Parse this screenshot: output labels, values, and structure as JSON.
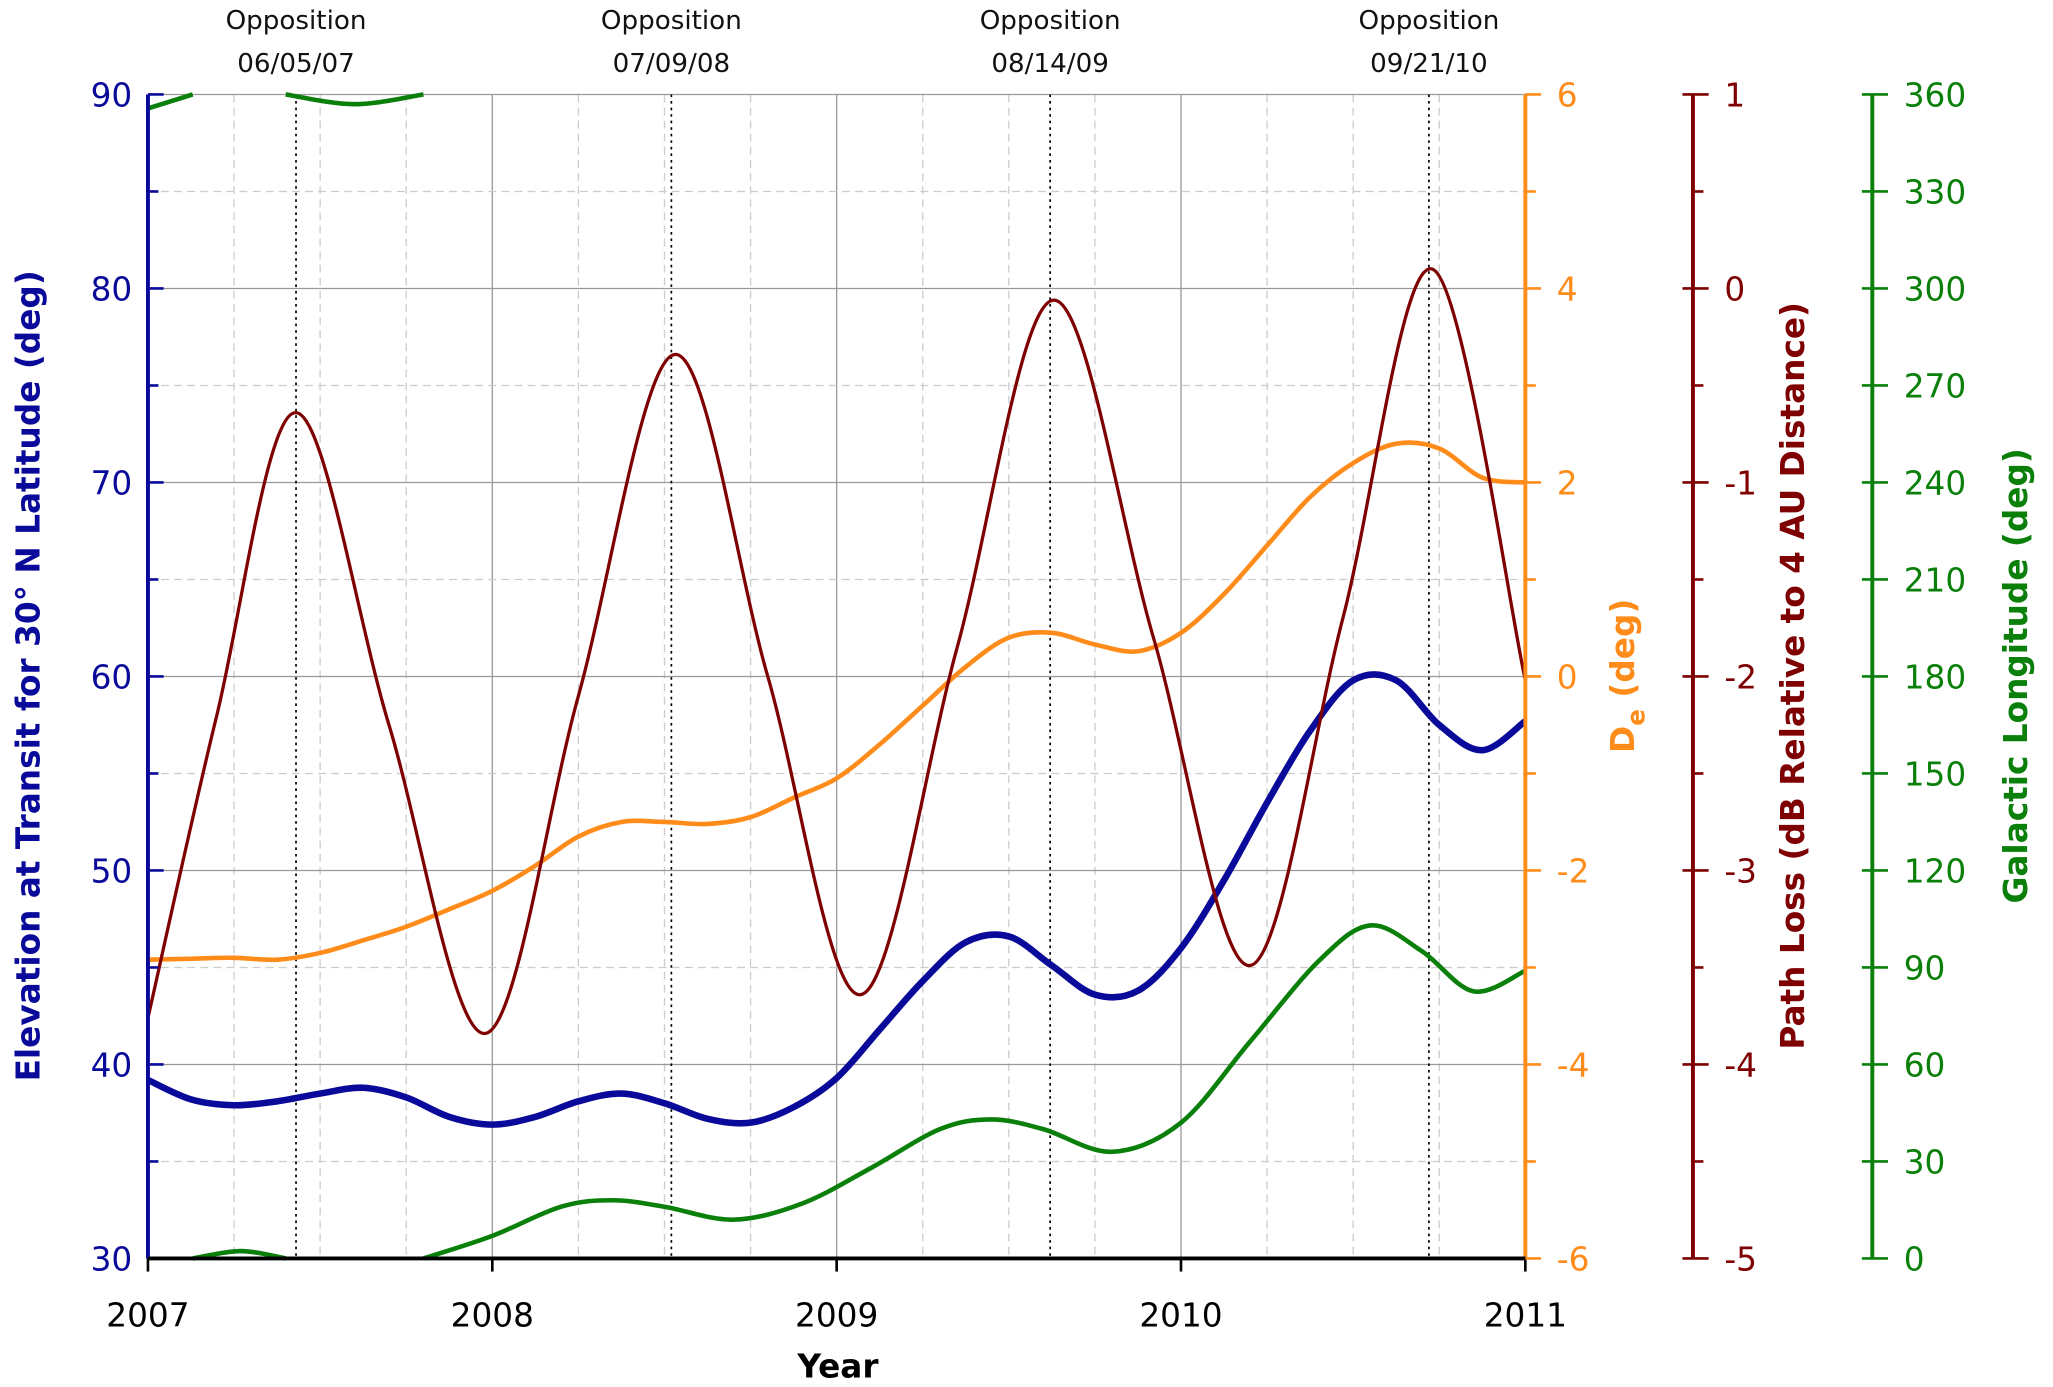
{
  "chart_data": {
    "type": "line",
    "xlabel": "Year",
    "ylabel": "Elevation at Transit for 30° N Latitude (deg)",
    "y2label": {
      "main": "D",
      "sub": "e",
      "unit": " (deg)"
    },
    "y3label": "Path Loss (dB Relative to 4 AU Distance)",
    "y4label": "Galactic Longitude (deg)",
    "xlim": [
      2007,
      2011
    ],
    "xticks": [
      2007,
      2008,
      2009,
      2010,
      2011
    ],
    "xminorticks": [
      2007.25,
      2007.5,
      2007.75,
      2008.25,
      2008.5,
      2008.75,
      2009.25,
      2009.5,
      2009.75,
      2010.25,
      2010.5,
      2010.75
    ],
    "ylim": [
      30,
      90
    ],
    "yticks": [
      30,
      40,
      50,
      60,
      70,
      80,
      90
    ],
    "yminorticks": [
      35,
      45,
      55,
      65,
      75,
      85
    ],
    "y2lim": [
      -6,
      6
    ],
    "y2ticks": [
      -6,
      -4,
      -2,
      0,
      2,
      4,
      6
    ],
    "y2minorticks": [
      -5,
      -3,
      -1,
      1,
      3,
      5
    ],
    "y3lim": [
      -5,
      1
    ],
    "y3ticks": [
      -5,
      -4,
      -3,
      -2,
      -1,
      0,
      1
    ],
    "y3minorticks": [
      -4.5,
      -3.5,
      -2.5,
      -1.5,
      -0.5,
      0.5
    ],
    "y4lim": [
      0,
      360
    ],
    "y4ticks": [
      0,
      30,
      60,
      90,
      120,
      150,
      180,
      210,
      240,
      270,
      300,
      330,
      360
    ],
    "grid": true,
    "annotations": [
      {
        "label": "Opposition",
        "date": "06/05/07",
        "x": 2007.43
      },
      {
        "label": "Opposition",
        "date": "07/09/08",
        "x": 2008.52
      },
      {
        "label": "Opposition",
        "date": "08/14/09",
        "x": 2009.62
      },
      {
        "label": "Opposition",
        "date": "09/21/10",
        "x": 2010.72
      }
    ],
    "series": [
      {
        "axis": "y",
        "color": "#0a0a9a",
        "x": [
          2007,
          2007.125,
          2007.25,
          2007.375,
          2007.5,
          2007.625,
          2007.75,
          2007.875,
          2008,
          2008.125,
          2008.25,
          2008.375,
          2008.5,
          2008.625,
          2008.75,
          2008.875,
          2009,
          2009.125,
          2009.25,
          2009.375,
          2009.5,
          2009.625,
          2009.75,
          2009.875,
          2010,
          2010.125,
          2010.25,
          2010.375,
          2010.5,
          2010.625,
          2010.75,
          2010.875,
          2011
        ],
        "values": [
          39.2,
          38.2,
          37.9,
          38.1,
          38.5,
          38.8,
          38.3,
          37.3,
          36.9,
          37.3,
          38.1,
          38.5,
          38.0,
          37.2,
          37.0,
          37.8,
          39.3,
          41.8,
          44.3,
          46.3,
          46.6,
          45.1,
          43.6,
          43.8,
          46.0,
          49.5,
          53.5,
          57.2,
          59.8,
          59.8,
          57.5,
          56.2,
          57.7
        ]
      },
      {
        "axis": "y2",
        "color": "#ff8c1a",
        "x": [
          2007,
          2007.125,
          2007.25,
          2007.375,
          2007.5,
          2007.625,
          2007.75,
          2007.875,
          2008,
          2008.125,
          2008.25,
          2008.375,
          2008.5,
          2008.625,
          2008.75,
          2008.875,
          2009,
          2009.125,
          2009.25,
          2009.375,
          2009.5,
          2009.625,
          2009.75,
          2009.875,
          2010,
          2010.125,
          2010.25,
          2010.375,
          2010.5,
          2010.625,
          2010.75,
          2010.875,
          2011
        ],
        "values": [
          -2.92,
          -2.91,
          -2.9,
          -2.92,
          -2.85,
          -2.72,
          -2.58,
          -2.4,
          -2.21,
          -1.95,
          -1.65,
          -1.5,
          -1.5,
          -1.52,
          -1.45,
          -1.25,
          -1.05,
          -0.7,
          -0.3,
          0.1,
          0.4,
          0.45,
          0.33,
          0.26,
          0.45,
          0.85,
          1.35,
          1.85,
          2.2,
          2.4,
          2.35,
          2.05,
          2.0
        ]
      },
      {
        "axis": "y3",
        "color": "#7f0000",
        "x": [
          2007,
          2007.2,
          2007.43,
          2007.7,
          2007.98,
          2008.25,
          2008.53,
          2008.8,
          2009.07,
          2009.35,
          2009.63,
          2009.92,
          2010.2,
          2010.47,
          2010.73,
          2011
        ],
        "values": [
          -3.76,
          -2.2,
          -0.64,
          -2.25,
          -3.84,
          -2.1,
          -0.34,
          -2.0,
          -3.64,
          -1.85,
          -0.06,
          -1.8,
          -3.49,
          -1.7,
          0.1,
          -2.02
        ]
      },
      {
        "axis": "y4",
        "color": "#0a800a",
        "x": [
          2007,
          2007.13,
          2007.13,
          2007.13,
          2007.27,
          2007.4,
          2007.4,
          2007.4,
          2007.6,
          2007.8,
          2007.8,
          2007.8,
          2008,
          2008.2,
          2008.35,
          2008.5,
          2008.7,
          2008.9,
          2009.1,
          2009.3,
          2009.45,
          2009.6,
          2009.8,
          2010,
          2010.2,
          2010.4,
          2010.55,
          2010.7,
          2010.85,
          2011
        ],
        "values": [
          355.7,
          360,
          null,
          0,
          2.3,
          0,
          null,
          360,
          357,
          360,
          null,
          0,
          7,
          16,
          18,
          16,
          12,
          17,
          28,
          40,
          43,
          40,
          33,
          42,
          67,
          92,
          103,
          95,
          82.6,
          89
        ]
      }
    ]
  }
}
